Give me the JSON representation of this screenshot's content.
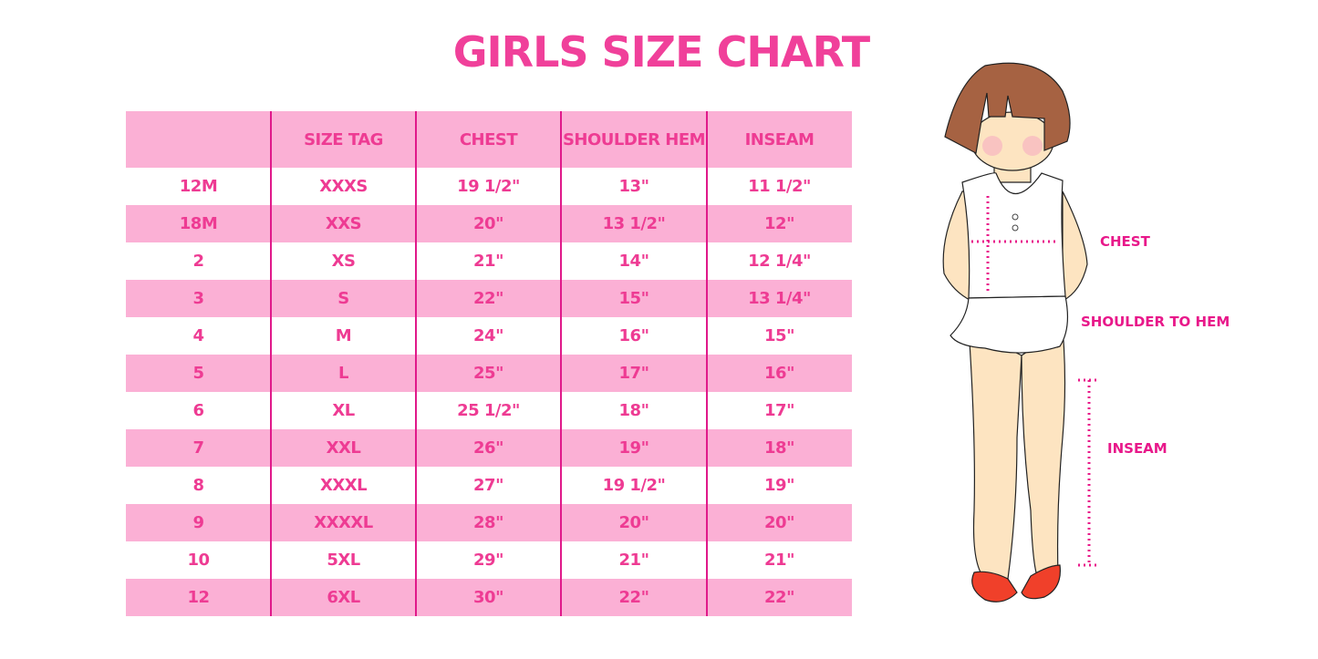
{
  "title": "GIRLS SIZE CHART",
  "table": {
    "headers": [
      "",
      "SIZE TAG",
      "CHEST",
      "SHOULDER HEM",
      "INSEAM"
    ],
    "rows": [
      [
        "12M",
        "XXXS",
        "19 1/2\"",
        "13\"",
        "11 1/2\""
      ],
      [
        "18M",
        "XXS",
        "20\"",
        "13 1/2\"",
        "12\""
      ],
      [
        "2",
        "XS",
        "21\"",
        "14\"",
        "12 1/4\""
      ],
      [
        "3",
        "S",
        "22\"",
        "15\"",
        "13 1/4\""
      ],
      [
        "4",
        "M",
        "24\"",
        "16\"",
        "15\""
      ],
      [
        "5",
        "L",
        "25\"",
        "17\"",
        "16\""
      ],
      [
        "6",
        "XL",
        "25 1/2\"",
        "18\"",
        "17\""
      ],
      [
        "7",
        "XXL",
        "26\"",
        "19\"",
        "18\""
      ],
      [
        "8",
        "XXXL",
        "27\"",
        "19 1/2\"",
        "19\""
      ],
      [
        "9",
        "XXXXL",
        "28\"",
        "20\"",
        "20\""
      ],
      [
        "10",
        "5XL",
        "29\"",
        "21\"",
        "21\""
      ],
      [
        "12",
        "6XL",
        "30\"",
        "22\"",
        "22\""
      ]
    ]
  },
  "figure": {
    "labels": {
      "chest": "CHEST",
      "shoulder_to_hem": "SHOULDER TO HEM",
      "inseam": "INSEAM"
    }
  },
  "colors": {
    "accent": "#ee3b93",
    "band": "#fbb0d5",
    "divider": "#e0198a"
  }
}
